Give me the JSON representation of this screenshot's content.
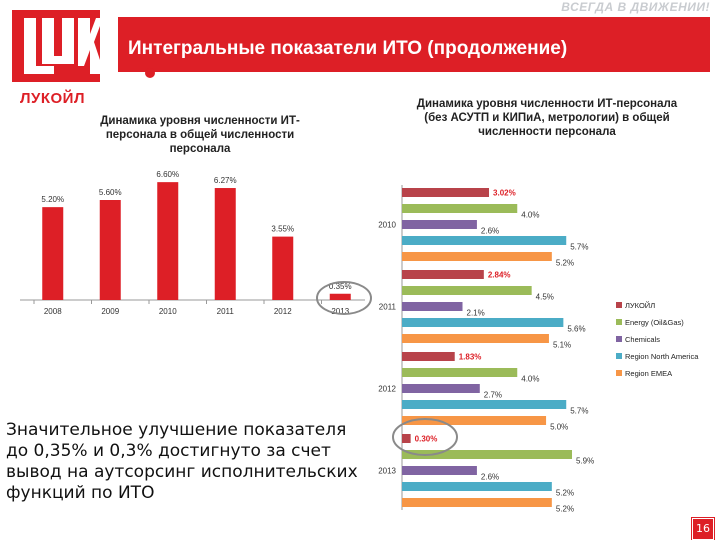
{
  "header": {
    "slogan": "ВСЕГДА В ДВИЖЕНИИ!",
    "title": "Интегральные показатели ИТО (продолжение)"
  },
  "logo": {
    "text": "ЛУКОЙЛ",
    "mark_text": "LUK"
  },
  "note": "Значительное улучшение показателя до 0,35% и 0,3% достигнуто за счет вывод на аутсорсинг исполнительских функций по ИТО",
  "page_number": "16",
  "colors": {
    "accent": "#dd1f26",
    "lukoil": "#b8434a",
    "energy": "#9bbb59",
    "chemicals": "#8064a2",
    "north_america": "#4bacc6",
    "emea": "#f79646"
  },
  "chart_data": [
    {
      "type": "bar",
      "title": "Динамика уровня численности ИТ-персонала в общей численности персонала",
      "categories": [
        "2008",
        "2009",
        "2010",
        "2011",
        "2012",
        "2013"
      ],
      "values": [
        5.2,
        5.6,
        6.6,
        6.27,
        3.55,
        0.35
      ],
      "labels": [
        "5.20%",
        "5.60%",
        "6.60%",
        "6.27%",
        "3.55%",
        "0.35%"
      ],
      "ylim": [
        0,
        7
      ],
      "color": "#dd1f26",
      "grid": false
    },
    {
      "type": "bar",
      "orientation": "horizontal",
      "title": "Динамика уровня численности ИТ-персонала (без АСУТП и КИПиА, метрологии) в общей численности персонала",
      "categories": [
        "2010",
        "2011",
        "2012",
        "2013"
      ],
      "series": [
        {
          "name": "ЛУКОЙЛ",
          "color": "#b8434a",
          "values": [
            3.02,
            2.84,
            1.83,
            0.3
          ],
          "labels": [
            "3.02%",
            "2.84%",
            "1.83%",
            "0.30%"
          ]
        },
        {
          "name": "Energy (Oil&Gas)",
          "color": "#9bbb59",
          "values": [
            4.0,
            4.5,
            4.0,
            5.9
          ],
          "labels": [
            "4.0%",
            "4.5%",
            "4.0%",
            "5.9%"
          ]
        },
        {
          "name": "Chemicals",
          "color": "#8064a2",
          "values": [
            2.6,
            2.1,
            2.7,
            2.6
          ],
          "labels": [
            "2.6%",
            "2.1%",
            "2.7%",
            "2.6%"
          ]
        },
        {
          "name": "Region North America",
          "color": "#4bacc6",
          "values": [
            5.7,
            5.6,
            5.7,
            5.2
          ],
          "labels": [
            "5.7%",
            "5.6%",
            "5.7%",
            "5.2%"
          ]
        },
        {
          "name": "Region EMEA",
          "color": "#f79646",
          "values": [
            5.2,
            5.1,
            5.0,
            5.2
          ],
          "labels": [
            "5.2%",
            "5.1%",
            "5.0%",
            "5.2%"
          ]
        }
      ],
      "xlim": [
        0,
        7
      ],
      "legend": "right",
      "grid": false
    }
  ]
}
